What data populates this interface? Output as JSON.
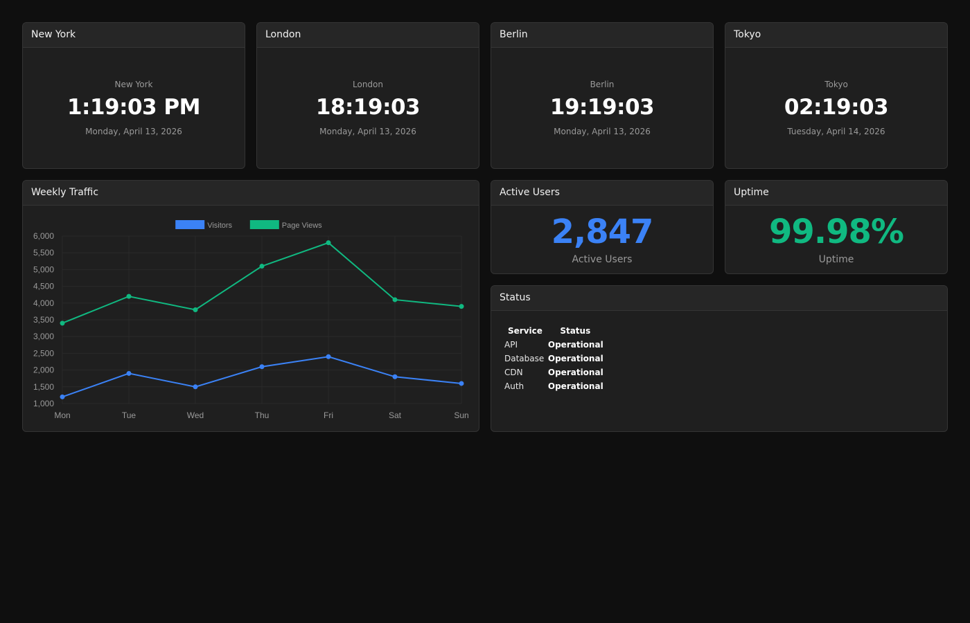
{
  "clocks": [
    {
      "title": "New York",
      "city": "New York",
      "time": "1:19:03 PM",
      "date": "Monday, April 13, 2026"
    },
    {
      "title": "London",
      "city": "London",
      "time": "18:19:03",
      "date": "Monday, April 13, 2026"
    },
    {
      "title": "Berlin",
      "city": "Berlin",
      "time": "19:19:03",
      "date": "Monday, April 13, 2026"
    },
    {
      "title": "Tokyo",
      "city": "Tokyo",
      "time": "02:19:03",
      "date": "Tuesday, April 14, 2026"
    }
  ],
  "traffic": {
    "title": "Weekly Traffic"
  },
  "active_users": {
    "title": "Active Users",
    "value": "2,847",
    "label": "Active Users",
    "color": "#3b82f6"
  },
  "uptime": {
    "title": "Uptime",
    "value": "99.98%",
    "label": "Uptime",
    "color": "#10b981"
  },
  "status": {
    "title": "Status",
    "headers": [
      "Service",
      "Status"
    ],
    "rows": [
      {
        "service": "API",
        "status": "Operational"
      },
      {
        "service": "Database",
        "status": "Operational"
      },
      {
        "service": "CDN",
        "status": "Operational"
      },
      {
        "service": "Auth",
        "status": "Operational"
      }
    ]
  },
  "chart_data": {
    "type": "line",
    "title": "",
    "xlabel": "",
    "ylabel": "",
    "categories": [
      "Mon",
      "Tue",
      "Wed",
      "Thu",
      "Fri",
      "Sat",
      "Sun"
    ],
    "series": [
      {
        "name": "Visitors",
        "color": "#3b82f6",
        "values": [
          1200,
          1900,
          1500,
          2100,
          2400,
          1800,
          1600
        ]
      },
      {
        "name": "Page Views",
        "color": "#10b981",
        "values": [
          3400,
          4200,
          3800,
          5100,
          5800,
          4100,
          3900
        ]
      }
    ],
    "ylim": [
      1000,
      6000
    ],
    "yticks": [
      1000,
      1500,
      2000,
      2500,
      3000,
      3500,
      4000,
      4500,
      5000,
      5500,
      6000
    ],
    "ytick_labels": [
      "1,000",
      "1,500",
      "2,000",
      "2,500",
      "3,000",
      "3,500",
      "4,000",
      "4,500",
      "5,000",
      "5,500",
      "6,000"
    ],
    "grid": true,
    "legend": "top-center"
  }
}
